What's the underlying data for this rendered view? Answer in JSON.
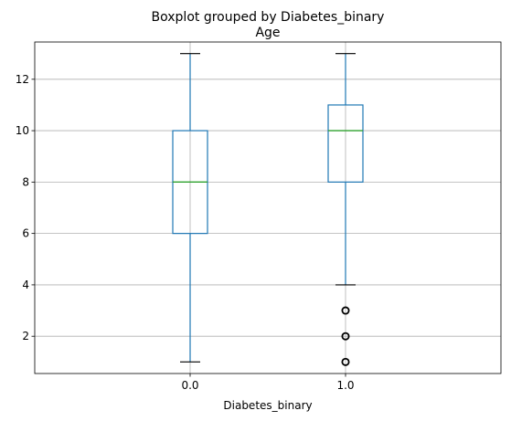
{
  "chart_data": {
    "type": "boxplot",
    "suptitle": "Boxplot grouped by Diabetes_binary",
    "title": "Age",
    "xlabel": "Diabetes_binary",
    "ylabel": "",
    "categories": [
      "0.0",
      "1.0"
    ],
    "ylim": [
      0.55,
      13.45
    ],
    "yticks": [
      2,
      4,
      6,
      8,
      10,
      12
    ],
    "grid": true,
    "colors": {
      "box": "#1f77b4",
      "median": "#2ca02c",
      "grid": "#b0b0b0",
      "flier": "#000000"
    },
    "boxes": [
      {
        "category": "0.0",
        "whisker_low": 1,
        "q1": 6,
        "median": 8,
        "q3": 10,
        "whisker_high": 13,
        "fliers": []
      },
      {
        "category": "1.0",
        "whisker_low": 4,
        "q1": 8,
        "median": 10,
        "q3": 11,
        "whisker_high": 13,
        "fliers": [
          1,
          2,
          3
        ]
      }
    ]
  }
}
